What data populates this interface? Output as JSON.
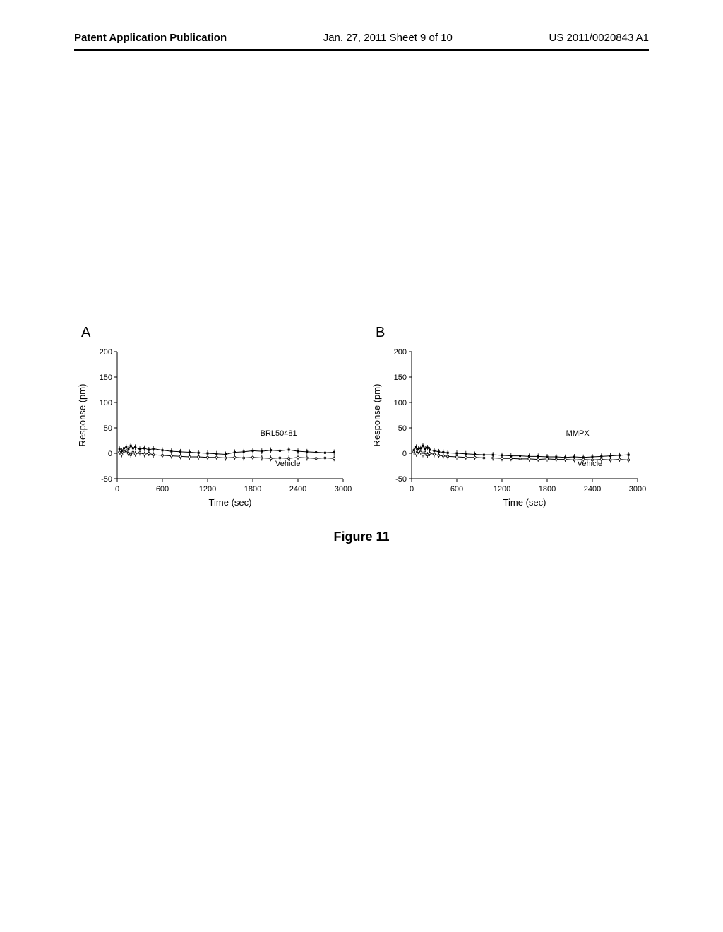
{
  "header": {
    "left": "Patent Application Publication",
    "center": "Jan. 27, 2011  Sheet 9 of 10",
    "right": "US 2011/0020843 A1"
  },
  "figure_caption": "Figure 11",
  "chart_a": {
    "type": "line",
    "panel_label": "A",
    "ylabel": "Response (pm)",
    "xlabel": "Time (sec)",
    "ylim": [
      -50,
      200
    ],
    "xlim": [
      0,
      3000
    ],
    "yticks": [
      -50,
      0,
      50,
      100,
      150,
      200
    ],
    "xticks": [
      0,
      600,
      1200,
      1800,
      2400,
      3000
    ],
    "label_fontsize": 13,
    "tick_fontsize": 11,
    "background_color": "#ffffff",
    "axis_color": "#000000",
    "series": [
      {
        "name": "BRL50481",
        "label_x": 1900,
        "label_y": 35,
        "color": "#000000",
        "marker": "square",
        "marker_size": 3,
        "data": [
          {
            "x": 30,
            "y": 8
          },
          {
            "x": 60,
            "y": 5
          },
          {
            "x": 90,
            "y": 10
          },
          {
            "x": 120,
            "y": 12
          },
          {
            "x": 150,
            "y": 8
          },
          {
            "x": 180,
            "y": 15
          },
          {
            "x": 210,
            "y": 10
          },
          {
            "x": 240,
            "y": 12
          },
          {
            "x": 300,
            "y": 8
          },
          {
            "x": 360,
            "y": 10
          },
          {
            "x": 420,
            "y": 7
          },
          {
            "x": 480,
            "y": 9
          },
          {
            "x": 600,
            "y": 6
          },
          {
            "x": 720,
            "y": 4
          },
          {
            "x": 840,
            "y": 3
          },
          {
            "x": 960,
            "y": 2
          },
          {
            "x": 1080,
            "y": 1
          },
          {
            "x": 1200,
            "y": 0
          },
          {
            "x": 1320,
            "y": -1
          },
          {
            "x": 1440,
            "y": -2
          },
          {
            "x": 1560,
            "y": 2
          },
          {
            "x": 1680,
            "y": 3
          },
          {
            "x": 1800,
            "y": 5
          },
          {
            "x": 1920,
            "y": 4
          },
          {
            "x": 2040,
            "y": 6
          },
          {
            "x": 2160,
            "y": 5
          },
          {
            "x": 2280,
            "y": 7
          },
          {
            "x": 2400,
            "y": 4
          },
          {
            "x": 2520,
            "y": 3
          },
          {
            "x": 2640,
            "y": 2
          },
          {
            "x": 2760,
            "y": 1
          },
          {
            "x": 2880,
            "y": 2
          }
        ]
      },
      {
        "name": "Vehicle",
        "label_x": 2100,
        "label_y": -25,
        "color": "#000000",
        "marker": "circle-open",
        "marker_size": 3,
        "data": [
          {
            "x": 30,
            "y": 2
          },
          {
            "x": 60,
            "y": -2
          },
          {
            "x": 90,
            "y": 3
          },
          {
            "x": 120,
            "y": 5
          },
          {
            "x": 150,
            "y": 0
          },
          {
            "x": 180,
            "y": -3
          },
          {
            "x": 210,
            "y": 2
          },
          {
            "x": 240,
            "y": -1
          },
          {
            "x": 300,
            "y": 1
          },
          {
            "x": 360,
            "y": -2
          },
          {
            "x": 420,
            "y": 0
          },
          {
            "x": 480,
            "y": -3
          },
          {
            "x": 600,
            "y": -4
          },
          {
            "x": 720,
            "y": -5
          },
          {
            "x": 840,
            "y": -6
          },
          {
            "x": 960,
            "y": -7
          },
          {
            "x": 1080,
            "y": -7
          },
          {
            "x": 1200,
            "y": -8
          },
          {
            "x": 1320,
            "y": -8
          },
          {
            "x": 1440,
            "y": -9
          },
          {
            "x": 1560,
            "y": -8
          },
          {
            "x": 1680,
            "y": -9
          },
          {
            "x": 1800,
            "y": -8
          },
          {
            "x": 1920,
            "y": -9
          },
          {
            "x": 2040,
            "y": -10
          },
          {
            "x": 2160,
            "y": -9
          },
          {
            "x": 2280,
            "y": -10
          },
          {
            "x": 2400,
            "y": -8
          },
          {
            "x": 2520,
            "y": -9
          },
          {
            "x": 2640,
            "y": -10
          },
          {
            "x": 2760,
            "y": -9
          },
          {
            "x": 2880,
            "y": -10
          }
        ]
      }
    ]
  },
  "chart_b": {
    "type": "line",
    "panel_label": "B",
    "ylabel": "Response (pm)",
    "xlabel": "Time (sec)",
    "ylim": [
      -50,
      200
    ],
    "xlim": [
      0,
      3000
    ],
    "yticks": [
      -50,
      0,
      50,
      100,
      150,
      200
    ],
    "xticks": [
      0,
      600,
      1200,
      1800,
      2400,
      3000
    ],
    "label_fontsize": 13,
    "tick_fontsize": 11,
    "background_color": "#ffffff",
    "axis_color": "#000000",
    "series": [
      {
        "name": "MMPX",
        "label_x": 2050,
        "label_y": 35,
        "color": "#000000",
        "marker": "square",
        "marker_size": 3,
        "data": [
          {
            "x": 30,
            "y": 6
          },
          {
            "x": 60,
            "y": 12
          },
          {
            "x": 90,
            "y": 8
          },
          {
            "x": 120,
            "y": 10
          },
          {
            "x": 150,
            "y": 15
          },
          {
            "x": 180,
            "y": 9
          },
          {
            "x": 210,
            "y": 11
          },
          {
            "x": 240,
            "y": 7
          },
          {
            "x": 300,
            "y": 5
          },
          {
            "x": 360,
            "y": 3
          },
          {
            "x": 420,
            "y": 2
          },
          {
            "x": 480,
            "y": 1
          },
          {
            "x": 600,
            "y": 0
          },
          {
            "x": 720,
            "y": -1
          },
          {
            "x": 840,
            "y": -2
          },
          {
            "x": 960,
            "y": -3
          },
          {
            "x": 1080,
            "y": -3
          },
          {
            "x": 1200,
            "y": -4
          },
          {
            "x": 1320,
            "y": -5
          },
          {
            "x": 1440,
            "y": -5
          },
          {
            "x": 1560,
            "y": -6
          },
          {
            "x": 1680,
            "y": -6
          },
          {
            "x": 1800,
            "y": -7
          },
          {
            "x": 1920,
            "y": -7
          },
          {
            "x": 2040,
            "y": -8
          },
          {
            "x": 2160,
            "y": -7
          },
          {
            "x": 2280,
            "y": -8
          },
          {
            "x": 2400,
            "y": -7
          },
          {
            "x": 2520,
            "y": -6
          },
          {
            "x": 2640,
            "y": -5
          },
          {
            "x": 2760,
            "y": -4
          },
          {
            "x": 2880,
            "y": -3
          }
        ]
      },
      {
        "name": "Vehicle",
        "label_x": 2200,
        "label_y": -25,
        "color": "#000000",
        "marker": "circle-open",
        "marker_size": 3,
        "data": [
          {
            "x": 30,
            "y": 3
          },
          {
            "x": 60,
            "y": -1
          },
          {
            "x": 90,
            "y": 4
          },
          {
            "x": 120,
            "y": 2
          },
          {
            "x": 150,
            "y": -2
          },
          {
            "x": 180,
            "y": 1
          },
          {
            "x": 210,
            "y": -3
          },
          {
            "x": 240,
            "y": 0
          },
          {
            "x": 300,
            "y": -2
          },
          {
            "x": 360,
            "y": -4
          },
          {
            "x": 420,
            "y": -5
          },
          {
            "x": 480,
            "y": -6
          },
          {
            "x": 600,
            "y": -7
          },
          {
            "x": 720,
            "y": -8
          },
          {
            "x": 840,
            "y": -8
          },
          {
            "x": 960,
            "y": -9
          },
          {
            "x": 1080,
            "y": -9
          },
          {
            "x": 1200,
            "y": -10
          },
          {
            "x": 1320,
            "y": -10
          },
          {
            "x": 1440,
            "y": -11
          },
          {
            "x": 1560,
            "y": -11
          },
          {
            "x": 1680,
            "y": -12
          },
          {
            "x": 1800,
            "y": -11
          },
          {
            "x": 1920,
            "y": -12
          },
          {
            "x": 2040,
            "y": -12
          },
          {
            "x": 2160,
            "y": -13
          },
          {
            "x": 2280,
            "y": -12
          },
          {
            "x": 2400,
            "y": -13
          },
          {
            "x": 2520,
            "y": -12
          },
          {
            "x": 2640,
            "y": -13
          },
          {
            "x": 2760,
            "y": -12
          },
          {
            "x": 2880,
            "y": -13
          }
        ]
      }
    ]
  }
}
